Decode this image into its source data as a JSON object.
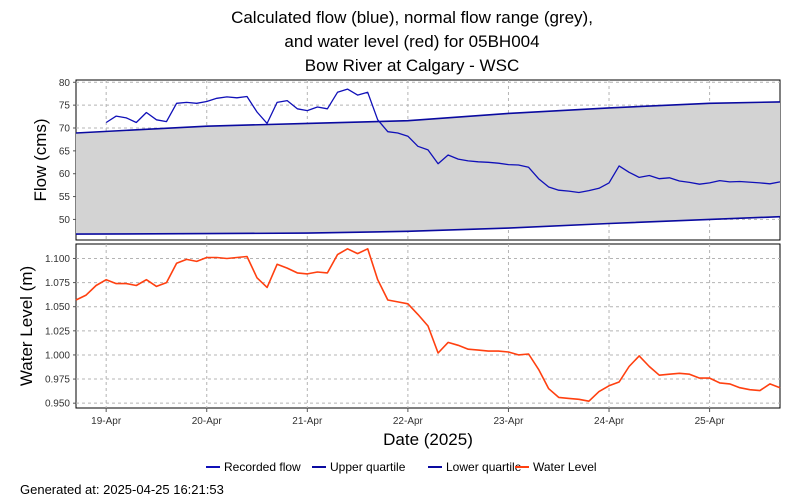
{
  "title_lines": [
    "Calculated flow (blue), normal flow range (grey),",
    "and water level (red) for 05BH004",
    "Bow River at Calgary - WSC"
  ],
  "generated_at": "Generated at: 2025-04-25 16:21:53",
  "colors": {
    "flow": "#1010b8",
    "quartile": "#0a0aa0",
    "range_fill": "#d3d3d3",
    "water_level": "#ff4010",
    "grid": "#b4b4b4"
  },
  "chart_data": [
    {
      "type": "area",
      "ylabel": "Flow (cms)",
      "ylim": [
        45.5,
        80.5
      ],
      "yticks": [
        50,
        55,
        60,
        65,
        70,
        75,
        80
      ],
      "ytick_labels": [
        "50",
        "55",
        "60",
        "65",
        "70",
        "75",
        "80"
      ],
      "xlim": [
        -0.3,
        6.7
      ],
      "grid": true,
      "series": [
        {
          "name": "Recorded flow",
          "x": [
            0.0,
            0.1,
            0.2,
            0.3,
            0.4,
            0.5,
            0.6,
            0.7,
            0.8,
            0.9,
            1.0,
            1.1,
            1.2,
            1.3,
            1.4,
            1.5,
            1.6,
            1.7,
            1.8,
            1.9,
            2.0,
            2.1,
            2.2,
            2.3,
            2.4,
            2.5,
            2.6,
            2.7,
            2.8,
            2.9,
            3.0,
            3.1,
            3.2,
            3.3,
            3.4,
            3.5,
            3.6,
            3.7,
            3.8,
            3.9,
            4.0,
            4.1,
            4.2,
            4.3,
            4.4,
            4.5,
            4.6,
            4.7,
            4.8,
            4.9,
            5.0,
            5.1,
            5.2,
            5.3,
            5.4,
            5.5,
            5.6,
            5.7,
            5.8,
            5.9,
            6.0,
            6.1,
            6.2,
            6.3,
            6.5,
            6.6,
            6.7
          ],
          "values": [
            71.2,
            72.6,
            72.2,
            71.2,
            73.4,
            71.8,
            71.4,
            75.4,
            75.6,
            75.4,
            75.8,
            76.5,
            76.8,
            76.6,
            76.9,
            73.5,
            71.0,
            75.6,
            76.0,
            74.2,
            73.8,
            74.6,
            74.2,
            77.8,
            78.5,
            77.2,
            77.8,
            71.8,
            69.2,
            68.9,
            68.2,
            66.0,
            65.2,
            62.2,
            64.1,
            63.2,
            62.8,
            62.6,
            62.5,
            62.3,
            62.0,
            61.9,
            61.4,
            58.9,
            57.1,
            56.4,
            56.2,
            55.9,
            56.3,
            56.8,
            58.0,
            61.7,
            60.3,
            59.2,
            59.6,
            58.9,
            59.1,
            58.4,
            58.1,
            57.7,
            58.0,
            58.5,
            58.2,
            58.3,
            58.0,
            57.8,
            58.2
          ]
        },
        {
          "name": "Upper quartile",
          "x": [
            -0.3,
            0.3,
            1.0,
            2.0,
            3.0,
            4.0,
            5.0,
            6.0,
            6.7
          ],
          "values": [
            68.9,
            69.6,
            70.4,
            71.0,
            71.6,
            73.2,
            74.4,
            75.4,
            75.7
          ]
        },
        {
          "name": "Lower quartile",
          "x": [
            -0.3,
            1.0,
            2.0,
            3.0,
            4.0,
            5.0,
            6.0,
            6.7
          ],
          "values": [
            46.8,
            46.9,
            47.0,
            47.4,
            48.1,
            49.1,
            50.0,
            50.6
          ]
        }
      ]
    },
    {
      "type": "line",
      "ylabel": "Water Level (m)",
      "xlabel": "Date (2025)",
      "ylim": [
        0.945,
        1.115
      ],
      "yticks": [
        0.95,
        0.975,
        1.0,
        1.025,
        1.05,
        1.075,
        1.1
      ],
      "ytick_labels": [
        "0.950",
        "0.975",
        "1.000",
        "1.025",
        "1.050",
        "1.075",
        "1.100"
      ],
      "xlim": [
        -0.3,
        6.7
      ],
      "xticks": [
        0,
        1,
        2,
        3,
        4,
        5,
        6
      ],
      "xtick_labels": [
        "19-Apr",
        "20-Apr",
        "21-Apr",
        "22-Apr",
        "23-Apr",
        "24-Apr",
        "25-Apr"
      ],
      "grid": true,
      "series": [
        {
          "name": "Water Level",
          "x": [
            -0.3,
            -0.2,
            -0.1,
            0.0,
            0.1,
            0.2,
            0.3,
            0.4,
            0.5,
            0.6,
            0.7,
            0.8,
            0.9,
            1.0,
            1.1,
            1.2,
            1.3,
            1.4,
            1.5,
            1.6,
            1.7,
            1.8,
            1.9,
            2.0,
            2.1,
            2.2,
            2.3,
            2.4,
            2.5,
            2.6,
            2.7,
            2.8,
            2.9,
            3.0,
            3.1,
            3.2,
            3.3,
            3.4,
            3.5,
            3.6,
            3.7,
            3.8,
            3.9,
            4.0,
            4.1,
            4.2,
            4.3,
            4.4,
            4.5,
            4.6,
            4.7,
            4.8,
            4.9,
            5.0,
            5.1,
            5.2,
            5.3,
            5.4,
            5.5,
            5.6,
            5.7,
            5.8,
            5.9,
            6.0,
            6.1,
            6.2,
            6.3,
            6.4,
            6.5,
            6.6,
            6.7
          ],
          "values": [
            1.057,
            1.062,
            1.072,
            1.078,
            1.074,
            1.074,
            1.072,
            1.078,
            1.071,
            1.075,
            1.095,
            1.099,
            1.097,
            1.101,
            1.101,
            1.1,
            1.101,
            1.102,
            1.08,
            1.07,
            1.094,
            1.09,
            1.085,
            1.084,
            1.086,
            1.085,
            1.104,
            1.11,
            1.105,
            1.11,
            1.078,
            1.057,
            1.055,
            1.053,
            1.042,
            1.03,
            1.002,
            1.013,
            1.01,
            1.006,
            1.005,
            1.004,
            1.004,
            1.003,
            1.0,
            1.001,
            0.985,
            0.965,
            0.956,
            0.955,
            0.954,
            0.952,
            0.962,
            0.968,
            0.972,
            0.988,
            0.999,
            0.988,
            0.979,
            0.98,
            0.981,
            0.98,
            0.976,
            0.976,
            0.971,
            0.97,
            0.966,
            0.964,
            0.963,
            0.97,
            0.966
          ]
        }
      ]
    }
  ],
  "legend": [
    {
      "label": "Recorded flow",
      "color": "#1010b8"
    },
    {
      "label": "Upper quartile",
      "color": "#0a0aa0"
    },
    {
      "label": "Lower quartile",
      "color": "#0a0aa0"
    },
    {
      "label": "Water Level",
      "color": "#ff4010"
    }
  ]
}
